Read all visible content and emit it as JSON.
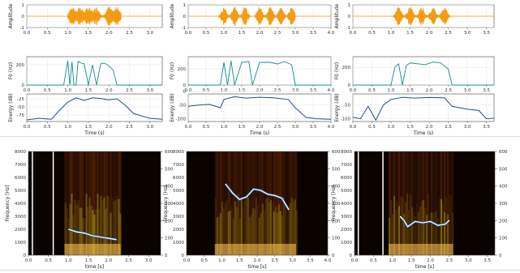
{
  "colors": {
    "waveform": "#f39c12",
    "f0": "#138d90",
    "energy": "#1f4e8c",
    "grid": "#dddddd",
    "contour": "#ffffff"
  },
  "chart_data": [
    {
      "id": "wave-1",
      "type": "line",
      "ylabel": "Amplitude",
      "xlim": [
        0,
        3.3
      ],
      "ylim": [
        -1,
        1
      ],
      "xticks": [
        "0.0",
        "0.5",
        "1.0",
        "1.5",
        "2.0",
        "2.5",
        "3.0"
      ],
      "yticks": [
        "1",
        "0",
        "-1"
      ],
      "signal": {
        "start": 1.0,
        "end": 2.3,
        "peaks": [
          1.1,
          1.3,
          1.5,
          1.7,
          2.0,
          2.2
        ]
      }
    },
    {
      "id": "f0-1",
      "type": "line",
      "ylabel": "F0 (Hz)",
      "xlim": [
        0,
        3.3
      ],
      "ylim": [
        0,
        280
      ],
      "xticks": [
        "0.0",
        "0.5",
        "1.0",
        "1.5",
        "2.0",
        "2.5",
        "3.0"
      ],
      "yticks": [
        "200",
        "0"
      ],
      "x": [
        0.9,
        1.0,
        1.05,
        1.1,
        1.15,
        1.2,
        1.25,
        1.3,
        1.4,
        1.5,
        1.6,
        1.7,
        1.8,
        1.9,
        2.0,
        2.1,
        2.2
      ],
      "values": [
        0,
        240,
        0,
        230,
        0,
        0,
        235,
        220,
        210,
        0,
        200,
        0,
        210,
        215,
        190,
        150,
        0
      ]
    },
    {
      "id": "energy-1",
      "type": "line",
      "ylabel": "Energy (dB)",
      "xlabel": "Time (s)",
      "xlim": [
        0,
        3.3
      ],
      "ylim": [
        -95,
        -10
      ],
      "xticks": [
        "0.0",
        "0.5",
        "1.0",
        "1.5",
        "2.0",
        "2.5",
        "3.0"
      ],
      "yticks": [
        "-25",
        "-50",
        "-75"
      ],
      "x": [
        0,
        0.3,
        0.6,
        0.8,
        1.0,
        1.2,
        1.4,
        1.6,
        1.8,
        2.0,
        2.2,
        2.4,
        2.6,
        2.8,
        3.0,
        3.3
      ],
      "values": [
        -90,
        -85,
        -88,
        -60,
        -35,
        -22,
        -30,
        -22,
        -24,
        -28,
        -25,
        -45,
        -70,
        -78,
        -85,
        -88
      ]
    },
    {
      "id": "wave-2",
      "type": "line",
      "ylabel": "Amplitude",
      "xlim": [
        0,
        4.0
      ],
      "ylim": [
        -1,
        1
      ],
      "xticks": [
        "0.0",
        "0.5",
        "1.0",
        "1.5",
        "2.0",
        "2.5",
        "3.0",
        "3.5",
        "4.0"
      ],
      "yticks": [
        "1",
        "0",
        "-1"
      ],
      "signal": {
        "start": 0.8,
        "end": 3.0,
        "peaks": [
          1.0,
          1.3,
          1.6,
          2.0,
          2.3,
          2.6,
          2.9
        ]
      }
    },
    {
      "id": "f0-2",
      "type": "line",
      "ylabel": "F0 (Hz)",
      "xlim": [
        0,
        4.0
      ],
      "ylim": [
        0,
        350
      ],
      "xticks": [
        "0.0",
        "0.5",
        "1.0",
        "1.5",
        "2.0",
        "2.5",
        "3.0",
        "3.5",
        "4.0"
      ],
      "yticks": [
        "200",
        "0"
      ],
      "x": [
        0.9,
        1.0,
        1.1,
        1.2,
        1.3,
        1.5,
        1.7,
        1.8,
        2.0,
        2.3,
        2.5,
        2.7,
        2.9,
        3.0
      ],
      "values": [
        0,
        280,
        0,
        300,
        0,
        280,
        290,
        0,
        280,
        280,
        260,
        290,
        250,
        0
      ]
    },
    {
      "id": "energy-2",
      "type": "line",
      "ylabel": "Energy (dB)",
      "xlabel": "Time (s)",
      "xlim": [
        0,
        4.0
      ],
      "ylim": [
        -110,
        -10
      ],
      "xticks": [
        "0.0",
        "0.5",
        "1.0",
        "1.5",
        "2.0",
        "2.5",
        "3.0",
        "3.5",
        "4.0"
      ],
      "yticks": [
        "0",
        "-50",
        "-100"
      ],
      "x": [
        0,
        0.3,
        0.6,
        0.9,
        1.0,
        1.3,
        1.6,
        2.0,
        2.4,
        2.8,
        3.0,
        3.3,
        3.6,
        4.0
      ],
      "values": [
        -55,
        -50,
        -48,
        -60,
        -30,
        -20,
        -25,
        -22,
        -24,
        -30,
        -60,
        -95,
        -100,
        -102
      ]
    },
    {
      "id": "wave-3",
      "type": "line",
      "ylabel": "Amplitude",
      "xlim": [
        0,
        3.7
      ],
      "ylim": [
        -1,
        1
      ],
      "xticks": [
        "0.0",
        "0.5",
        "1.0",
        "1.5",
        "2.0",
        "2.5",
        "3.0",
        "3.5"
      ],
      "yticks": [
        "1",
        "0",
        "-1"
      ],
      "signal": {
        "start": 1.0,
        "end": 2.6,
        "peaks": [
          1.2,
          1.5,
          1.8,
          2.1,
          2.4
        ]
      }
    },
    {
      "id": "f0-3",
      "type": "line",
      "ylabel": "F0 (Hz)",
      "xlim": [
        0,
        3.7
      ],
      "ylim": [
        0,
        320
      ],
      "xticks": [
        "0.0",
        "0.5",
        "1.0",
        "1.5",
        "2.0",
        "2.5",
        "3.0",
        "3.5"
      ],
      "yticks": [
        "200",
        "0"
      ],
      "x": [
        1.0,
        1.1,
        1.2,
        1.3,
        1.4,
        1.5,
        1.7,
        1.9,
        2.1,
        2.3,
        2.5,
        2.6
      ],
      "values": [
        0,
        200,
        240,
        0,
        220,
        250,
        240,
        230,
        260,
        250,
        180,
        0
      ]
    },
    {
      "id": "energy-3",
      "type": "line",
      "ylabel": "Energy (dB)",
      "xlabel": "Time (s)",
      "xlim": [
        0,
        3.7
      ],
      "ylim": [
        -110,
        -10
      ],
      "xticks": [
        "0.0",
        "0.5",
        "1.0",
        "1.5",
        "2.0",
        "2.5",
        "3.0",
        "3.5"
      ],
      "yticks": [
        "-50",
        "-100"
      ],
      "x": [
        0,
        0.2,
        0.4,
        0.6,
        0.8,
        1.0,
        1.3,
        1.6,
        2.0,
        2.4,
        2.6,
        2.8,
        3.0,
        3.3,
        3.5,
        3.7
      ],
      "values": [
        -95,
        -100,
        -55,
        -105,
        -50,
        -30,
        -22,
        -25,
        -23,
        -24,
        -55,
        -60,
        -65,
        -70,
        -100,
        -98
      ]
    },
    {
      "id": "spec-1",
      "type": "heatmap",
      "ylabel": "Frequency [Hz]",
      "xlabel": "time [s]",
      "xlim": [
        0,
        3.3
      ],
      "ylim": [
        0,
        8000
      ],
      "xticks": [
        "0.0",
        "0.5",
        "1.0",
        "1.5",
        "2.0",
        "2.5",
        "3.0"
      ],
      "yticks": [
        "0",
        "1000",
        "2000",
        "3000",
        "4000",
        "5000",
        "6000",
        "7000",
        "8000"
      ],
      "right_ticks": [
        "0",
        "100",
        "200",
        "300",
        "400",
        "500",
        "600"
      ],
      "white_lines": [
        0.1,
        0.62
      ],
      "active": [
        0.9,
        2.3
      ],
      "contour": {
        "x": [
          1.0,
          1.2,
          1.4,
          1.6,
          1.8,
          2.0,
          2.2
        ],
        "values": [
          2000,
          1800,
          1700,
          1500,
          1400,
          1300,
          1200
        ]
      }
    },
    {
      "id": "spec-2",
      "type": "heatmap",
      "ylabel": "Frequency [Hz]",
      "xlabel": "time [s]",
      "xlim": [
        0,
        4.0
      ],
      "ylim": [
        0,
        8000
      ],
      "xticks": [
        "0.0",
        "0.5",
        "1.0",
        "1.5",
        "2.0",
        "2.5",
        "3.0",
        "3.5",
        "4.0"
      ],
      "yticks": [
        "0",
        "1000",
        "2000",
        "3000",
        "4000",
        "5000",
        "6000",
        "7000",
        "8000"
      ],
      "right_ticks": [
        "0",
        "100",
        "200",
        "300",
        "400",
        "500",
        "600"
      ],
      "white_lines": [],
      "active": [
        0.8,
        3.1
      ],
      "contour": {
        "x": [
          1.1,
          1.3,
          1.5,
          1.7,
          1.9,
          2.1,
          2.3,
          2.5,
          2.7,
          2.9
        ],
        "values": [
          5500,
          4800,
          4300,
          4500,
          5100,
          5000,
          4700,
          4600,
          4400,
          3500
        ]
      }
    },
    {
      "id": "spec-3",
      "type": "heatmap",
      "ylabel": "Frequency [Hz]",
      "xlabel": "time [s]",
      "xlim": [
        0,
        3.7
      ],
      "ylim": [
        0,
        8000
      ],
      "xticks": [
        "0.0",
        "0.5",
        "1.0",
        "1.5",
        "2.0",
        "2.5",
        "3.0",
        "3.5"
      ],
      "yticks": [
        "0",
        "1000",
        "2000",
        "3000",
        "4000",
        "5000",
        "6000",
        "7000",
        "8000"
      ],
      "right_ticks": [
        "0",
        "100",
        "200",
        "300",
        "400",
        "500",
        "600"
      ],
      "white_lines": [
        0.1,
        0.75
      ],
      "active": [
        0.9,
        2.6
      ],
      "contour": {
        "x": [
          1.2,
          1.3,
          1.4,
          1.6,
          1.8,
          2.0,
          2.2,
          2.4,
          2.5
        ],
        "values": [
          3000,
          2700,
          2200,
          2600,
          2500,
          2600,
          2300,
          2400,
          2700
        ]
      }
    }
  ]
}
